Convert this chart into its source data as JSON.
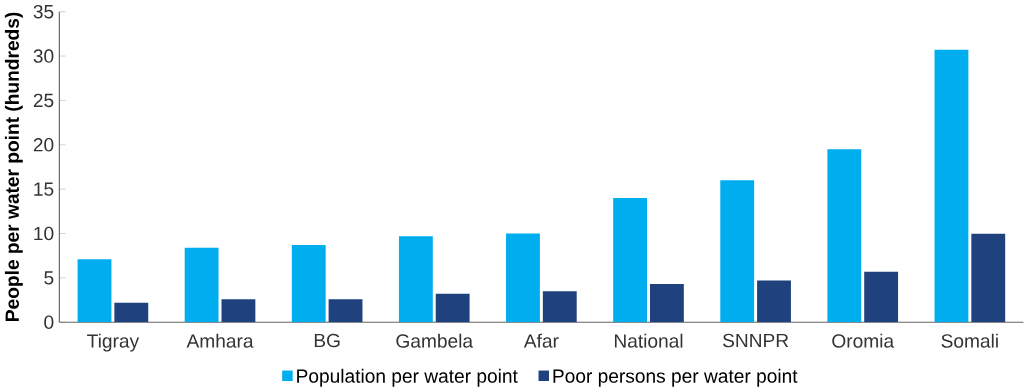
{
  "chart_data": {
    "type": "bar",
    "ylabel": "People per water point (hundreds)",
    "categories": [
      "Tigray",
      "Amhara",
      "BG",
      "Gambela",
      "Afar",
      "National",
      "SNNPR",
      "Oromia",
      "Somali"
    ],
    "series": [
      {
        "name": "Population per water point",
        "color": "#00adef",
        "values": [
          7.1,
          8.4,
          8.7,
          9.7,
          10.0,
          14.0,
          16.0,
          19.5,
          30.7
        ]
      },
      {
        "name": "Poor persons per water point",
        "color": "#1f417e",
        "values": [
          2.2,
          2.6,
          2.6,
          3.2,
          3.5,
          4.3,
          4.7,
          5.7,
          10.0
        ]
      }
    ],
    "ylim": [
      0,
      35
    ],
    "yticks": [
      0,
      5,
      10,
      15,
      20,
      25,
      30,
      35
    ],
    "grid": false,
    "legend": "bottom"
  }
}
